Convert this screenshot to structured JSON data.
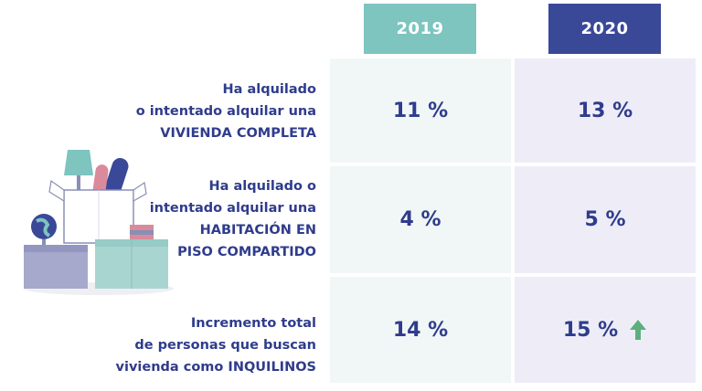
{
  "headers": {
    "y2019": "2019",
    "y2020": "2020"
  },
  "rows": [
    {
      "label_lines": [
        "Ha alquilado",
        "o intentado alquilar una",
        "VIVIENDA COMPLETA"
      ],
      "v2019": "11 %",
      "v2020": "13 %"
    },
    {
      "label_lines": [
        "Ha alquilado o",
        "intentado alquilar una",
        "HABITACIÓN EN",
        "PISO COMPARTIDO"
      ],
      "v2019": "4 %",
      "v2020": "5 %"
    },
    {
      "label_lines": [
        "Incremento total",
        "de personas que buscan",
        "vivienda como INQUILINOS"
      ],
      "v2019": "14 %",
      "v2020": "15 %"
    }
  ],
  "icons": {
    "increase": "arrow-up-icon",
    "illustration": "moving-boxes-illustration"
  },
  "colors": {
    "header_2019": "#7ec4bf",
    "header_2020": "#3a4898",
    "text": "#2f3c8c",
    "cell_2019": "#f1f7f6",
    "cell_2020": "#eeedf7",
    "arrow": "#5bb07e"
  }
}
